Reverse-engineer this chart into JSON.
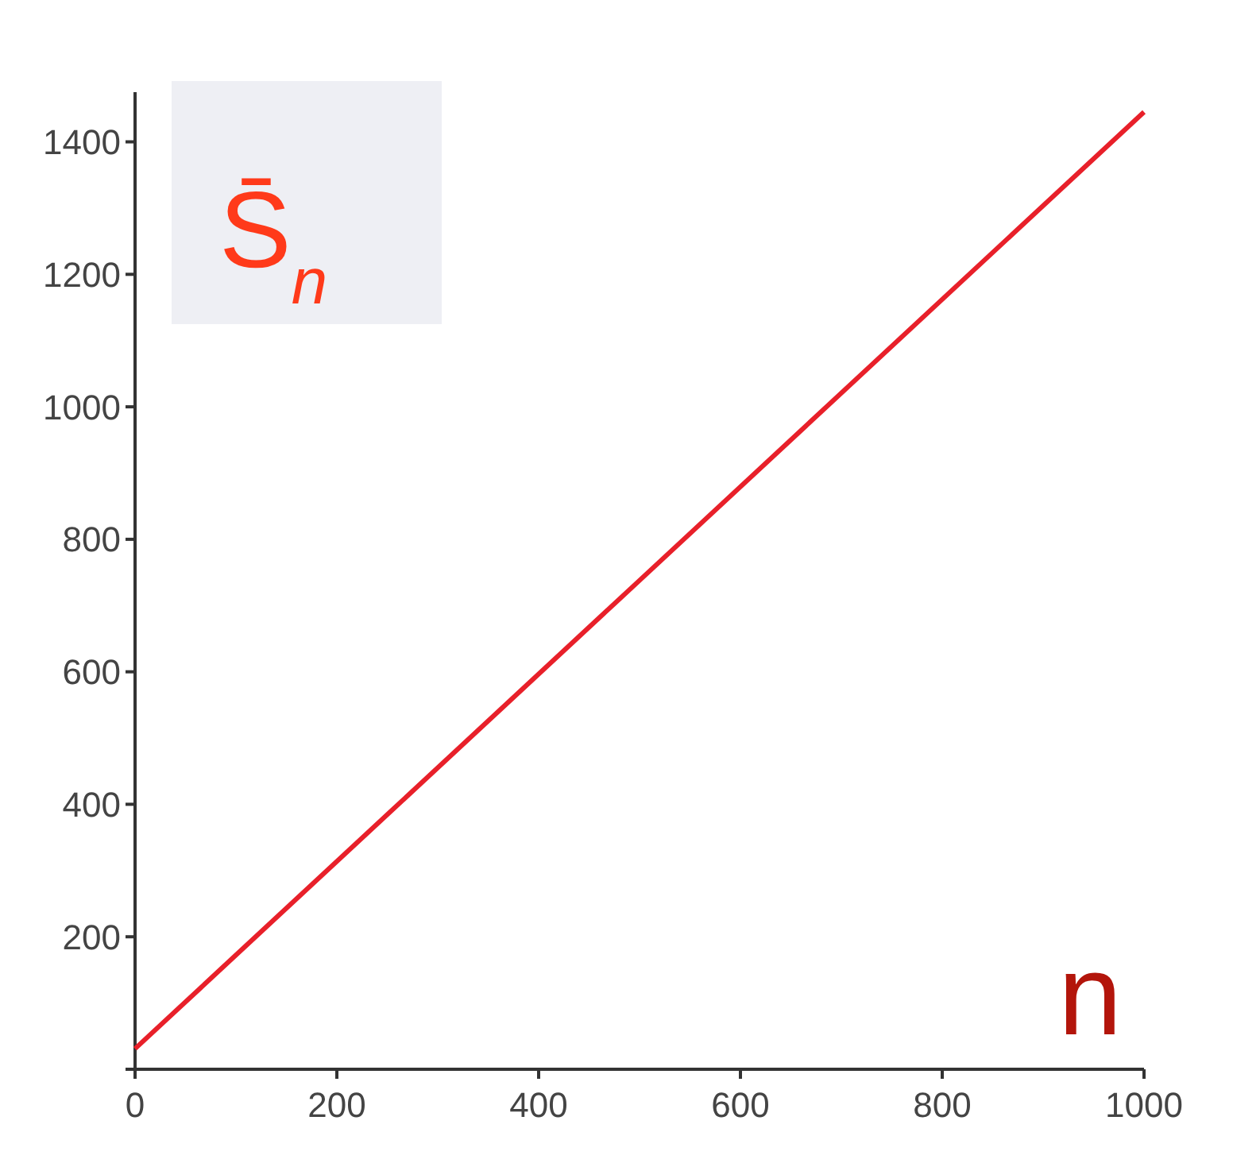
{
  "chart_data": {
    "type": "line",
    "xlabel": "n",
    "ylabel": "S̄$_{n}$",
    "x": [
      0,
      500,
      1000
    ],
    "series": [
      {
        "color": "#e8202a",
        "values": [
          31,
          738,
          1445
        ]
      }
    ],
    "xlim": [
      0,
      1000
    ],
    "ylim": [
      0,
      1475
    ],
    "xticks": [
      0,
      200,
      400,
      600,
      800,
      1000
    ],
    "yticks": [
      {
        "value": 0,
        "label": null
      },
      200,
      400,
      600,
      800,
      1000,
      1200,
      1400
    ],
    "grid": false,
    "marker": "none",
    "line_style": "solid"
  }
}
